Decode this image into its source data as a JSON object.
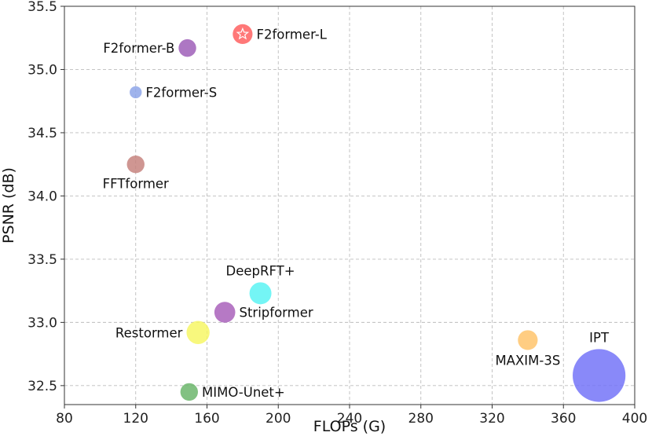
{
  "chart_data": {
    "type": "scatter",
    "title": "",
    "xlabel": "FLOPs (G)",
    "ylabel": "PSNR (dB)",
    "xlim": [
      80,
      400
    ],
    "ylim": [
      32.35,
      35.5
    ],
    "xticks": [
      80,
      120,
      160,
      200,
      240,
      280,
      320,
      360,
      400
    ],
    "xtick_labels": [
      "80",
      "120",
      "160",
      "200",
      "240",
      "280",
      "320",
      "360",
      "400"
    ],
    "yticks": [
      32.5,
      33.0,
      33.5,
      34.0,
      34.5,
      35.0,
      35.5
    ],
    "ytick_labels": [
      "32.5",
      "33.0",
      "33.5",
      "34.0",
      "34.5",
      "35.0",
      "35.5"
    ],
    "grid": true,
    "points": [
      {
        "name": "F2former-L",
        "x": 180,
        "y": 35.28,
        "color": "#ff5a5a",
        "bubble": 0.9,
        "marker": "star",
        "label_anchor": "right"
      },
      {
        "name": "F2former-B",
        "x": 149,
        "y": 35.17,
        "color": "#9b59b6",
        "bubble": 0.8,
        "label_anchor": "left"
      },
      {
        "name": "F2former-S",
        "x": 120,
        "y": 34.82,
        "color": "#8aa2e8",
        "bubble": 0.55,
        "label_anchor": "right"
      },
      {
        "name": "FFTformer",
        "x": 120,
        "y": 34.25,
        "color": "#c47f7a",
        "bubble": 0.8,
        "label_anchor": "below"
      },
      {
        "name": "DeepRFT+",
        "x": 190,
        "y": 33.23,
        "color": "#55f3f3",
        "bubble": 1.0,
        "label_anchor": "above"
      },
      {
        "name": "Stripformer",
        "x": 170,
        "y": 33.08,
        "color": "#a65cb8",
        "bubble": 0.95,
        "label_anchor": "right"
      },
      {
        "name": "Restormer",
        "x": 155,
        "y": 32.92,
        "color": "#f7f760",
        "bubble": 1.05,
        "label_anchor": "left"
      },
      {
        "name": "MIMO-Unet+",
        "x": 150,
        "y": 32.45,
        "color": "#66b366",
        "bubble": 0.8,
        "label_anchor": "right"
      },
      {
        "name": "MAXIM-3S",
        "x": 340,
        "y": 32.86,
        "color": "#ffc266",
        "bubble": 0.9,
        "label_anchor": "below"
      },
      {
        "name": "IPT",
        "x": 380,
        "y": 32.58,
        "color": "#6f6ff8",
        "bubble": 2.4,
        "label_anchor": "above"
      }
    ]
  }
}
